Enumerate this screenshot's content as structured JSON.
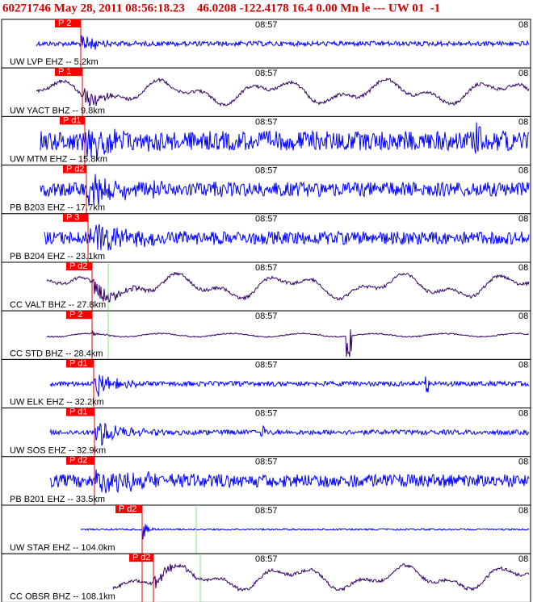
{
  "header": {
    "title": "60271746 May 28, 2011 08:56:18.23    46.0208 -122.4178 16.4 0.00 Mn le --- UW 01  -1"
  },
  "panels": [
    {
      "station": "UW LVP EHZ -- 5.2km",
      "pick": "P 2",
      "time": "08:57",
      "time_right": "08"
    },
    {
      "station": "UW YACT BHZ -- 9.8km",
      "pick": "P 1",
      "time": "08:57",
      "time_right": "08"
    },
    {
      "station": "UW MTM EHZ -- 15.8km",
      "pick": "P d1",
      "time": "08:57",
      "time_right": "08"
    },
    {
      "station": "PB B203 EHZ -- 17.7km",
      "pick": "P d2",
      "time": "08:57",
      "time_right": "08"
    },
    {
      "station": "PB B204 EHZ -- 23.1km",
      "pick": "P 3",
      "time": "08:57",
      "time_right": "08"
    },
    {
      "station": "CC VALT BHZ -- 27.8km",
      "pick": "P d2",
      "time": "08:57",
      "time_right": "08"
    },
    {
      "station": "CC STD BHZ -- 28.4km",
      "pick": "P 2",
      "time": "08:57",
      "time_right": "08"
    },
    {
      "station": "UW ELK EHZ -- 32.2km",
      "pick": "P d1",
      "time": "08:57",
      "time_right": "08"
    },
    {
      "station": "UW SOS EHZ -- 32.9km",
      "pick": "P d1",
      "time": "08:57",
      "time_right": "08"
    },
    {
      "station": "PB B201 EHZ -- 33.5km",
      "pick": "P d2",
      "time": "08:57",
      "time_right": "08"
    },
    {
      "station": "UW STAR EHZ -- 104.0km",
      "pick": "P d2",
      "time": "08:57",
      "time_right": "08"
    },
    {
      "station": "CC OBSR BHZ -- 108.1km",
      "pick": "P d2",
      "time": "08:57",
      "time_right": "08"
    }
  ]
}
